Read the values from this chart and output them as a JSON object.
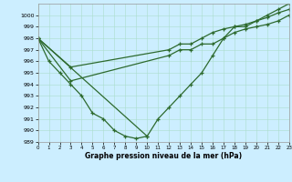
{
  "title": "Graphe pression niveau de la mer (hPa)",
  "bg_color": "#cceeff",
  "grid_color": "#aaddcc",
  "line_color": "#2d6a2d",
  "xlim": [
    0,
    23
  ],
  "ylim": [
    989,
    1001
  ],
  "yticks": [
    989,
    990,
    991,
    992,
    993,
    994,
    995,
    996,
    997,
    998,
    999,
    1000
  ],
  "xticks": [
    0,
    1,
    2,
    3,
    4,
    5,
    6,
    7,
    8,
    9,
    10,
    11,
    12,
    13,
    14,
    15,
    16,
    17,
    18,
    19,
    20,
    21,
    22,
    23
  ],
  "s1_x": [
    0,
    1,
    2,
    3,
    4,
    5,
    6,
    7,
    8,
    9,
    10
  ],
  "s1_y": [
    998,
    996,
    995,
    994,
    993,
    991.5,
    991,
    990,
    989.5,
    989.3,
    989.5
  ],
  "s2_x": [
    0,
    10,
    11,
    12,
    13,
    14,
    15,
    16,
    17,
    18,
    19,
    20,
    21,
    22,
    23
  ],
  "s2_y": [
    998,
    989.5,
    991,
    992,
    993,
    994,
    995,
    996.5,
    998,
    999,
    999,
    999.5,
    1000,
    1000.5,
    1001
  ],
  "s3_x": [
    0,
    3,
    12,
    13,
    14,
    15,
    16,
    17,
    18,
    19,
    20,
    21,
    22,
    23
  ],
  "s3_y": [
    998,
    995.5,
    997,
    997.5,
    997.5,
    998,
    998.5,
    998.8,
    999,
    999.2,
    999.5,
    999.8,
    1000.2,
    1000.5
  ],
  "s4_x": [
    0,
    3,
    12,
    13,
    14,
    15,
    16,
    17,
    18,
    19,
    20,
    21,
    22,
    23
  ],
  "s4_y": [
    998,
    994.3,
    996.5,
    997,
    997,
    997.5,
    997.5,
    998,
    998.5,
    998.8,
    999,
    999.2,
    999.5,
    1000
  ],
  "figsize": [
    3.2,
    2.0
  ],
  "dpi": 100
}
